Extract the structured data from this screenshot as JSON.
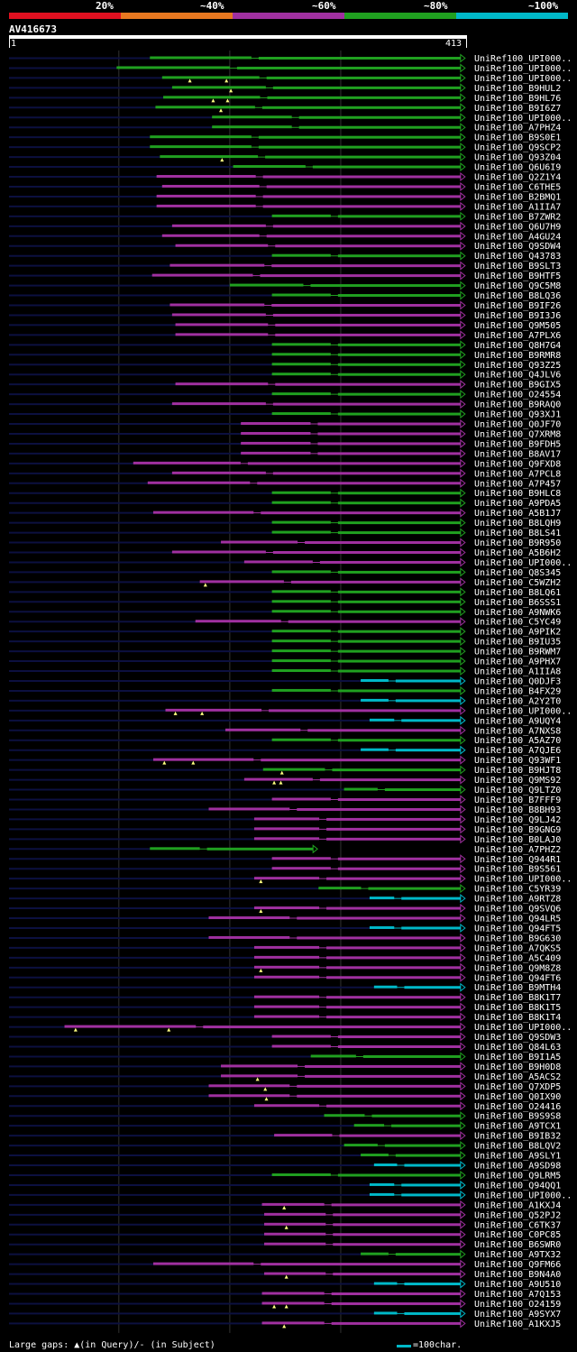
{
  "query": {
    "id": "AV416673",
    "start": "1",
    "end": "413",
    "length": 413
  },
  "legend": [
    {
      "label": "20%",
      "color": "#e01020"
    },
    {
      "label": "~40%",
      "color": "#e87820"
    },
    {
      "label": "~60%",
      "color": "#a030a0"
    },
    {
      "label": "~80%",
      "color": "#20a020"
    },
    {
      "label": "~100%",
      "color": "#00b8c8"
    }
  ],
  "colors": {
    "query_dim": "#0c1040",
    "grid": "#333333"
  },
  "footer": {
    "gaps_note": "Large gaps: ▲(in Query)/- (in Subject)",
    "scale_note": "=100char."
  },
  "chart_data": {
    "type": "alignment-overview",
    "title": "AV416673",
    "x_axis_range": [
      1,
      413
    ],
    "gridlines_at": [
      100,
      200,
      300
    ],
    "color_classes": [
      "20%",
      "~40%",
      "~60%",
      "~80%",
      "~100%"
    ],
    "hits": [
      {
        "name": "UniRef100_UPI000..",
        "start": 128,
        "end": 408,
        "cls": 3,
        "gaps": []
      },
      {
        "name": "UniRef100_UPI000..",
        "start": 98,
        "end": 408,
        "cls": 3,
        "gaps": []
      },
      {
        "name": "UniRef100_UPI000..",
        "start": 139,
        "end": 408,
        "cls": 3,
        "gaps": [
          164,
          197
        ]
      },
      {
        "name": "UniRef100_B9HUL2",
        "start": 148,
        "end": 408,
        "cls": 3,
        "gaps": [
          201
        ]
      },
      {
        "name": "UniRef100_B9HL76",
        "start": 140,
        "end": 408,
        "cls": 3,
        "gaps": [
          185,
          198
        ]
      },
      {
        "name": "UniRef100_B9I6Z7",
        "start": 133,
        "end": 408,
        "cls": 3,
        "gaps": [
          192
        ]
      },
      {
        "name": "UniRef100_UPI000..",
        "start": 184,
        "end": 408,
        "cls": 3,
        "gaps": []
      },
      {
        "name": "UniRef100_A7PHZ4",
        "start": 184,
        "end": 408,
        "cls": 3,
        "gaps": []
      },
      {
        "name": "UniRef100_B9S0E1",
        "start": 128,
        "end": 408,
        "cls": 3,
        "gaps": []
      },
      {
        "name": "UniRef100_Q9SCP2",
        "start": 128,
        "end": 408,
        "cls": 3,
        "gaps": []
      },
      {
        "name": "UniRef100_Q93Z04",
        "start": 137,
        "end": 408,
        "cls": 3,
        "gaps": [
          193
        ]
      },
      {
        "name": "UniRef100_Q6U6I9",
        "start": 203,
        "end": 408,
        "cls": 3,
        "gaps": []
      },
      {
        "name": "UniRef100_Q2Z1Y4",
        "start": 134,
        "end": 408,
        "cls": 2,
        "gaps": []
      },
      {
        "name": "UniRef100_C6THE5",
        "start": 139,
        "end": 408,
        "cls": 2,
        "gaps": []
      },
      {
        "name": "UniRef100_B2BMQ1",
        "start": 134,
        "end": 408,
        "cls": 2,
        "gaps": []
      },
      {
        "name": "UniRef100_A1IIA7",
        "start": 134,
        "end": 408,
        "cls": 2,
        "gaps": []
      },
      {
        "name": "UniRef100_B7ZWR2",
        "start": 238,
        "end": 408,
        "cls": 3,
        "gaps": []
      },
      {
        "name": "UniRef100_Q6U7H9",
        "start": 148,
        "end": 408,
        "cls": 2,
        "gaps": []
      },
      {
        "name": "UniRef100_A4GU24",
        "start": 139,
        "end": 408,
        "cls": 2,
        "gaps": []
      },
      {
        "name": "UniRef100_Q9SDW4",
        "start": 151,
        "end": 408,
        "cls": 2,
        "gaps": []
      },
      {
        "name": "UniRef100_Q43783",
        "start": 238,
        "end": 408,
        "cls": 3,
        "gaps": []
      },
      {
        "name": "UniRef100_B9SLT3",
        "start": 146,
        "end": 408,
        "cls": 2,
        "gaps": []
      },
      {
        "name": "UniRef100_B9HTF5",
        "start": 130,
        "end": 408,
        "cls": 2,
        "gaps": []
      },
      {
        "name": "UniRef100_Q9C5M8",
        "start": 200,
        "end": 408,
        "cls": 3,
        "gaps": []
      },
      {
        "name": "UniRef100_B8LQ36",
        "start": 238,
        "end": 408,
        "cls": 3,
        "gaps": []
      },
      {
        "name": "UniRef100_B9IF26",
        "start": 146,
        "end": 408,
        "cls": 2,
        "gaps": []
      },
      {
        "name": "UniRef100_B9I3J6",
        "start": 148,
        "end": 408,
        "cls": 2,
        "gaps": []
      },
      {
        "name": "UniRef100_Q9M505",
        "start": 151,
        "end": 408,
        "cls": 2,
        "gaps": []
      },
      {
        "name": "UniRef100_A7PLX6",
        "start": 151,
        "end": 408,
        "cls": 2,
        "gaps": []
      },
      {
        "name": "UniRef100_Q8H7G4",
        "start": 238,
        "end": 408,
        "cls": 3,
        "gaps": []
      },
      {
        "name": "UniRef100_B9RMR8",
        "start": 238,
        "end": 408,
        "cls": 3,
        "gaps": []
      },
      {
        "name": "UniRef100_Q93Z25",
        "start": 238,
        "end": 408,
        "cls": 3,
        "gaps": []
      },
      {
        "name": "UniRef100_Q4JLV6",
        "start": 238,
        "end": 408,
        "cls": 3,
        "gaps": []
      },
      {
        "name": "UniRef100_B9GIX5",
        "start": 151,
        "end": 408,
        "cls": 2,
        "gaps": []
      },
      {
        "name": "UniRef100_O24554",
        "start": 238,
        "end": 408,
        "cls": 3,
        "gaps": []
      },
      {
        "name": "UniRef100_B9RAQ0",
        "start": 148,
        "end": 408,
        "cls": 2,
        "gaps": []
      },
      {
        "name": "UniRef100_Q93XJ1",
        "start": 238,
        "end": 408,
        "cls": 3,
        "gaps": []
      },
      {
        "name": "UniRef100_Q0JF70",
        "start": 210,
        "end": 408,
        "cls": 2,
        "gaps": []
      },
      {
        "name": "UniRef100_Q7XRM8",
        "start": 210,
        "end": 408,
        "cls": 2,
        "gaps": []
      },
      {
        "name": "UniRef100_B9FDH5",
        "start": 210,
        "end": 408,
        "cls": 2,
        "gaps": []
      },
      {
        "name": "UniRef100_B8AV17",
        "start": 210,
        "end": 408,
        "cls": 2,
        "gaps": []
      },
      {
        "name": "UniRef100_Q9FXD8",
        "start": 113,
        "end": 408,
        "cls": 2,
        "gaps": []
      },
      {
        "name": "UniRef100_A7PCL8",
        "start": 148,
        "end": 408,
        "cls": 2,
        "gaps": []
      },
      {
        "name": "UniRef100_A7P457",
        "start": 126,
        "end": 408,
        "cls": 2,
        "gaps": []
      },
      {
        "name": "UniRef100_B9HLC8",
        "start": 238,
        "end": 408,
        "cls": 3,
        "gaps": []
      },
      {
        "name": "UniRef100_A9PDA5",
        "start": 238,
        "end": 408,
        "cls": 3,
        "gaps": []
      },
      {
        "name": "UniRef100_A5B1J7",
        "start": 131,
        "end": 408,
        "cls": 2,
        "gaps": []
      },
      {
        "name": "UniRef100_B8LQH9",
        "start": 238,
        "end": 408,
        "cls": 3,
        "gaps": []
      },
      {
        "name": "UniRef100_B8LS41",
        "start": 238,
        "end": 408,
        "cls": 3,
        "gaps": []
      },
      {
        "name": "UniRef100_B9R950",
        "start": 192,
        "end": 408,
        "cls": 2,
        "gaps": []
      },
      {
        "name": "UniRef100_A5B6H2",
        "start": 148,
        "end": 408,
        "cls": 2,
        "gaps": []
      },
      {
        "name": "UniRef100_UPI000..",
        "start": 213,
        "end": 408,
        "cls": 2,
        "gaps": []
      },
      {
        "name": "UniRef100_Q8S345",
        "start": 238,
        "end": 408,
        "cls": 3,
        "gaps": []
      },
      {
        "name": "UniRef100_C5WZH2",
        "start": 173,
        "end": 408,
        "cls": 2,
        "gaps": [
          178
        ]
      },
      {
        "name": "UniRef100_B8LQ61",
        "start": 238,
        "end": 408,
        "cls": 3,
        "gaps": []
      },
      {
        "name": "UniRef100_B6SSS1",
        "start": 238,
        "end": 408,
        "cls": 3,
        "gaps": []
      },
      {
        "name": "UniRef100_A9NWK6",
        "start": 238,
        "end": 408,
        "cls": 3,
        "gaps": []
      },
      {
        "name": "UniRef100_C5YC49",
        "start": 169,
        "end": 408,
        "cls": 2,
        "gaps": []
      },
      {
        "name": "UniRef100_A9PIK2",
        "start": 238,
        "end": 408,
        "cls": 3,
        "gaps": []
      },
      {
        "name": "UniRef100_B9IU35",
        "start": 238,
        "end": 408,
        "cls": 3,
        "gaps": []
      },
      {
        "name": "UniRef100_B9RWM7",
        "start": 238,
        "end": 408,
        "cls": 3,
        "gaps": []
      },
      {
        "name": "UniRef100_A9PHX7",
        "start": 238,
        "end": 408,
        "cls": 3,
        "gaps": []
      },
      {
        "name": "UniRef100_A1IIA8",
        "start": 238,
        "end": 408,
        "cls": 3,
        "gaps": []
      },
      {
        "name": "UniRef100_Q0DJF3",
        "start": 318,
        "end": 408,
        "cls": 4,
        "gaps": []
      },
      {
        "name": "UniRef100_B4FX29",
        "start": 238,
        "end": 408,
        "cls": 3,
        "gaps": []
      },
      {
        "name": "UniRef100_A2Y2T0",
        "start": 318,
        "end": 408,
        "cls": 4,
        "gaps": []
      },
      {
        "name": "UniRef100_UPI000..",
        "start": 142,
        "end": 408,
        "cls": 2,
        "gaps": [
          151,
          175
        ]
      },
      {
        "name": "UniRef100_A9UQY4",
        "start": 326,
        "end": 408,
        "cls": 4,
        "gaps": []
      },
      {
        "name": "UniRef100_A7NXS8",
        "start": 196,
        "end": 408,
        "cls": 2,
        "gaps": []
      },
      {
        "name": "UniRef100_A5AZ70",
        "start": 238,
        "end": 408,
        "cls": 3,
        "gaps": []
      },
      {
        "name": "UniRef100_A7QJE6",
        "start": 318,
        "end": 408,
        "cls": 4,
        "gaps": []
      },
      {
        "name": "UniRef100_Q93WF1",
        "start": 131,
        "end": 408,
        "cls": 2,
        "gaps": [
          141,
          167
        ]
      },
      {
        "name": "UniRef100_B9HJT8",
        "start": 230,
        "end": 408,
        "cls": 3,
        "gaps": [
          247
        ]
      },
      {
        "name": "UniRef100_Q9MS92",
        "start": 213,
        "end": 408,
        "cls": 2,
        "gaps": [
          240,
          246
        ]
      },
      {
        "name": "UniRef100_Q9LTZ0",
        "start": 303,
        "end": 408,
        "cls": 3,
        "gaps": []
      },
      {
        "name": "UniRef100_B7FFF9",
        "start": 238,
        "end": 408,
        "cls": 2,
        "gaps": []
      },
      {
        "name": "UniRef100_B8BH93",
        "start": 181,
        "end": 408,
        "cls": 2,
        "gaps": []
      },
      {
        "name": "UniRef100_Q9LJ42",
        "start": 222,
        "end": 408,
        "cls": 2,
        "gaps": []
      },
      {
        "name": "UniRef100_B9GNG9",
        "start": 222,
        "end": 408,
        "cls": 2,
        "gaps": []
      },
      {
        "name": "UniRef100_B0LAJ0",
        "start": 222,
        "end": 408,
        "cls": 2,
        "gaps": []
      },
      {
        "name": "UniRef100_A7PHZ2",
        "start": 128,
        "end": 275,
        "cls": 3,
        "gaps": []
      },
      {
        "name": "UniRef100_Q944R1",
        "start": 238,
        "end": 408,
        "cls": 2,
        "gaps": []
      },
      {
        "name": "UniRef100_B9S561",
        "start": 238,
        "end": 408,
        "cls": 2,
        "gaps": []
      },
      {
        "name": "UniRef100_UPI000..",
        "start": 222,
        "end": 408,
        "cls": 2,
        "gaps": [
          228
        ]
      },
      {
        "name": "UniRef100_C5YR39",
        "start": 280,
        "end": 408,
        "cls": 3,
        "gaps": []
      },
      {
        "name": "UniRef100_A9RTZ8",
        "start": 326,
        "end": 408,
        "cls": 4,
        "gaps": []
      },
      {
        "name": "UniRef100_Q9SVQ6",
        "start": 222,
        "end": 408,
        "cls": 2,
        "gaps": [
          228
        ]
      },
      {
        "name": "UniRef100_Q94LR5",
        "start": 181,
        "end": 408,
        "cls": 2,
        "gaps": []
      },
      {
        "name": "UniRef100_Q94FT5",
        "start": 326,
        "end": 408,
        "cls": 4,
        "gaps": []
      },
      {
        "name": "UniRef100_B9G630",
        "start": 181,
        "end": 408,
        "cls": 2,
        "gaps": []
      },
      {
        "name": "UniRef100_A7QKS5",
        "start": 222,
        "end": 408,
        "cls": 2,
        "gaps": []
      },
      {
        "name": "UniRef100_A5C409",
        "start": 222,
        "end": 408,
        "cls": 2,
        "gaps": []
      },
      {
        "name": "UniRef100_Q9M8Z8",
        "start": 222,
        "end": 408,
        "cls": 2,
        "gaps": [
          228
        ]
      },
      {
        "name": "UniRef100_Q94FT6",
        "start": 222,
        "end": 408,
        "cls": 2,
        "gaps": []
      },
      {
        "name": "UniRef100_B9MTH4",
        "start": 330,
        "end": 408,
        "cls": 4,
        "gaps": []
      },
      {
        "name": "UniRef100_B8K1T7",
        "start": 222,
        "end": 408,
        "cls": 2,
        "gaps": []
      },
      {
        "name": "UniRef100_B8K1T5",
        "start": 222,
        "end": 408,
        "cls": 2,
        "gaps": []
      },
      {
        "name": "UniRef100_B8K1T4",
        "start": 222,
        "end": 408,
        "cls": 2,
        "gaps": []
      },
      {
        "name": "UniRef100_UPI000..",
        "start": 51,
        "end": 408,
        "cls": 2,
        "gaps": [
          61,
          145
        ]
      },
      {
        "name": "UniRef100_Q9SDW3",
        "start": 238,
        "end": 408,
        "cls": 2,
        "gaps": []
      },
      {
        "name": "UniRef100_Q84L63",
        "start": 238,
        "end": 408,
        "cls": 2,
        "gaps": []
      },
      {
        "name": "UniRef100_B9I1A5",
        "start": 273,
        "end": 408,
        "cls": 3,
        "gaps": []
      },
      {
        "name": "UniRef100_B9H0D8",
        "start": 192,
        "end": 408,
        "cls": 2,
        "gaps": []
      },
      {
        "name": "UniRef100_A5ACS2",
        "start": 192,
        "end": 408,
        "cls": 2,
        "gaps": [
          225
        ]
      },
      {
        "name": "UniRef100_Q7XDP5",
        "start": 181,
        "end": 408,
        "cls": 2,
        "gaps": [
          232
        ]
      },
      {
        "name": "UniRef100_Q0IX90",
        "start": 181,
        "end": 408,
        "cls": 2,
        "gaps": [
          233
        ]
      },
      {
        "name": "UniRef100_O24416",
        "start": 222,
        "end": 408,
        "cls": 2,
        "gaps": []
      },
      {
        "name": "UniRef100_B9S9S8",
        "start": 285,
        "end": 408,
        "cls": 3,
        "gaps": []
      },
      {
        "name": "UniRef100_A9TCX1",
        "start": 312,
        "end": 408,
        "cls": 3,
        "gaps": []
      },
      {
        "name": "UniRef100_B9IB32",
        "start": 240,
        "end": 408,
        "cls": 2,
        "gaps": []
      },
      {
        "name": "UniRef100_B8LQV2",
        "start": 303,
        "end": 408,
        "cls": 3,
        "gaps": []
      },
      {
        "name": "UniRef100_A9SLY1",
        "start": 318,
        "end": 408,
        "cls": 3,
        "gaps": []
      },
      {
        "name": "UniRef100_A9SD98",
        "start": 330,
        "end": 408,
        "cls": 4,
        "gaps": []
      },
      {
        "name": "UniRef100_Q9LRM5",
        "start": 238,
        "end": 408,
        "cls": 3,
        "gaps": []
      },
      {
        "name": "UniRef100_Q94QQ1",
        "start": 326,
        "end": 408,
        "cls": 4,
        "gaps": []
      },
      {
        "name": "UniRef100_UPI000..",
        "start": 326,
        "end": 408,
        "cls": 4,
        "gaps": []
      },
      {
        "name": "UniRef100_A1KXJ4",
        "start": 229,
        "end": 408,
        "cls": 2,
        "gaps": [
          249
        ]
      },
      {
        "name": "UniRef100_Q52PJ2",
        "start": 231,
        "end": 408,
        "cls": 2,
        "gaps": []
      },
      {
        "name": "UniRef100_C6TK37",
        "start": 231,
        "end": 408,
        "cls": 2,
        "gaps": [
          251
        ]
      },
      {
        "name": "UniRef100_C0PC85",
        "start": 231,
        "end": 408,
        "cls": 2,
        "gaps": []
      },
      {
        "name": "UniRef100_B6SWR0",
        "start": 231,
        "end": 408,
        "cls": 2,
        "gaps": []
      },
      {
        "name": "UniRef100_A9TX32",
        "start": 318,
        "end": 408,
        "cls": 3,
        "gaps": []
      },
      {
        "name": "UniRef100_Q9FM66",
        "start": 131,
        "end": 408,
        "cls": 2,
        "gaps": []
      },
      {
        "name": "UniRef100_B9N4A0",
        "start": 231,
        "end": 408,
        "cls": 2,
        "gaps": [
          251
        ]
      },
      {
        "name": "UniRef100_A9U510",
        "start": 330,
        "end": 408,
        "cls": 4,
        "gaps": []
      },
      {
        "name": "UniRef100_A7Q153",
        "start": 229,
        "end": 408,
        "cls": 2,
        "gaps": []
      },
      {
        "name": "UniRef100_O24159",
        "start": 229,
        "end": 408,
        "cls": 2,
        "gaps": [
          240,
          251
        ]
      },
      {
        "name": "UniRef100_A9SYX7",
        "start": 330,
        "end": 408,
        "cls": 4,
        "gaps": []
      },
      {
        "name": "UniRef100_A1KXJ5",
        "start": 229,
        "end": 408,
        "cls": 2,
        "gaps": [
          249
        ]
      }
    ]
  }
}
